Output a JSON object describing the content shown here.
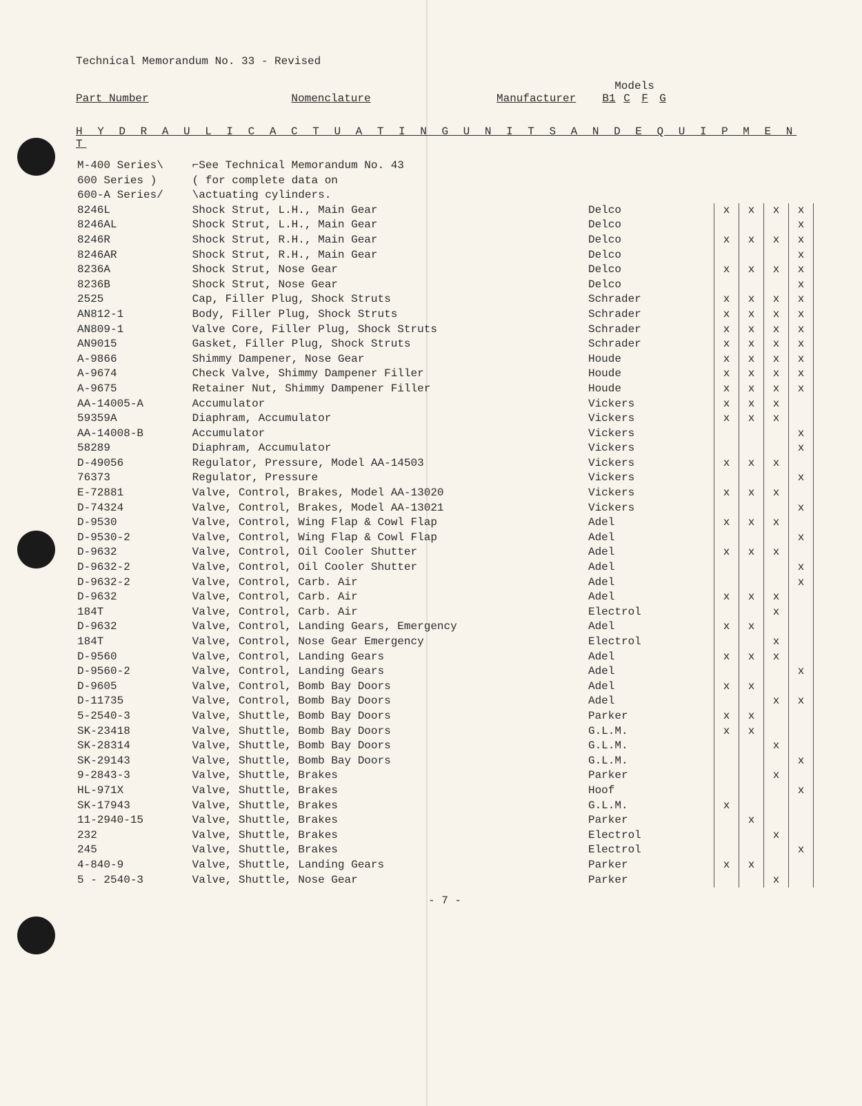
{
  "doc": {
    "title": "Technical Memorandum No. 33 - Revised",
    "headers": {
      "part": "Part Number",
      "nom": "Nomenclature",
      "mfr": "Manufacturer",
      "models": "Models",
      "mcols": [
        "B1",
        "C",
        "F",
        "G"
      ]
    },
    "section": "H Y D R A U L I C   A C T U A T I N G   U N I T S   A N D   E Q U I P M E N T",
    "note_rows": [
      {
        "part": "M-400 Series\\",
        "nom": "⌐See Technical Memorandum No. 43"
      },
      {
        "part": "600 Series  )",
        "nom": "( for complete data on"
      },
      {
        "part": "600-A Series/",
        "nom": "\\actuating cylinders."
      }
    ],
    "rows": [
      {
        "part": "8246L",
        "nom": "Shock Strut, L.H., Main Gear",
        "mfr": "Delco",
        "m": [
          "x",
          "x",
          "x",
          "x"
        ]
      },
      {
        "part": "8246AL",
        "nom": "Shock Strut, L.H., Main Gear",
        "mfr": "Delco",
        "m": [
          "",
          "",
          "",
          "x"
        ]
      },
      {
        "part": "8246R",
        "nom": "Shock Strut, R.H., Main Gear",
        "mfr": "Delco",
        "m": [
          "x",
          "x",
          "x",
          "x"
        ]
      },
      {
        "part": "8246AR",
        "nom": "Shock Strut, R.H., Main Gear",
        "mfr": "Delco",
        "m": [
          "",
          "",
          "",
          "x"
        ]
      },
      {
        "part": "8236A",
        "nom": "Shock Strut, Nose Gear",
        "mfr": "Delco",
        "m": [
          "x",
          "x",
          "x",
          "x"
        ]
      },
      {
        "part": "8236B",
        "nom": "Shock Strut, Nose Gear",
        "mfr": "Delco",
        "m": [
          "",
          "",
          "",
          "x"
        ]
      },
      {
        "part": "2525",
        "nom": "Cap, Filler Plug, Shock Struts",
        "mfr": "Schrader",
        "m": [
          "x",
          "x",
          "x",
          "x"
        ]
      },
      {
        "part": "AN812-1",
        "nom": "Body, Filler Plug, Shock Struts",
        "mfr": "Schrader",
        "m": [
          "x",
          "x",
          "x",
          "x"
        ]
      },
      {
        "part": "AN809-1",
        "nom": "Valve Core, Filler Plug, Shock Struts",
        "mfr": "Schrader",
        "m": [
          "x",
          "x",
          "x",
          "x"
        ]
      },
      {
        "part": "AN9015",
        "nom": "Gasket, Filler Plug, Shock Struts",
        "mfr": "Schrader",
        "m": [
          "x",
          "x",
          "x",
          "x"
        ]
      },
      {
        "part": "A-9866",
        "nom": "Shimmy Dampener, Nose Gear",
        "mfr": "Houde",
        "m": [
          "x",
          "x",
          "x",
          "x"
        ]
      },
      {
        "part": "A-9674",
        "nom": "Check Valve, Shimmy Dampener Filler",
        "mfr": "Houde",
        "m": [
          "x",
          "x",
          "x",
          "x"
        ]
      },
      {
        "part": "A-9675",
        "nom": "Retainer Nut, Shimmy Dampener Filler",
        "mfr": "Houde",
        "m": [
          "x",
          "x",
          "x",
          "x"
        ]
      },
      {
        "part": "AA-14005-A",
        "nom": "Accumulator",
        "mfr": "Vickers",
        "m": [
          "x",
          "x",
          "x",
          ""
        ]
      },
      {
        "part": "59359A",
        "nom": "Diaphram, Accumulator",
        "mfr": "Vickers",
        "m": [
          "x",
          "x",
          "x",
          ""
        ]
      },
      {
        "part": "AA-14008-B",
        "nom": "Accumulator",
        "mfr": "Vickers",
        "m": [
          "",
          "",
          "",
          "x"
        ]
      },
      {
        "part": "58289",
        "nom": "Diaphram, Accumulator",
        "mfr": "Vickers",
        "m": [
          "",
          "",
          "",
          "x"
        ]
      },
      {
        "part": "D-49056",
        "nom": "Regulator, Pressure, Model AA-14503",
        "mfr": "Vickers",
        "m": [
          "x",
          "x",
          "x",
          ""
        ]
      },
      {
        "part": "76373",
        "nom": "Regulator, Pressure",
        "mfr": "Vickers",
        "m": [
          "",
          "",
          "",
          "x"
        ]
      },
      {
        "part": "E-72881",
        "nom": "Valve, Control, Brakes, Model AA-13020",
        "mfr": "Vickers",
        "m": [
          "x",
          "x",
          "x",
          ""
        ]
      },
      {
        "part": "D-74324",
        "nom": "Valve, Control, Brakes, Model AA-13021",
        "mfr": "Vickers",
        "m": [
          "",
          "",
          "",
          "x"
        ]
      },
      {
        "part": "D-9530",
        "nom": "Valve, Control, Wing Flap & Cowl Flap",
        "mfr": "Adel",
        "m": [
          "x",
          "x",
          "x",
          ""
        ]
      },
      {
        "part": "D-9530-2",
        "nom": "Valve, Control, Wing Flap & Cowl Flap",
        "mfr": "Adel",
        "m": [
          "",
          "",
          "",
          "x"
        ]
      },
      {
        "part": "D-9632",
        "nom": "Valve, Control, Oil Cooler Shutter",
        "mfr": "Adel",
        "m": [
          "x",
          "x",
          "x",
          ""
        ]
      },
      {
        "part": "D-9632-2",
        "nom": "Valve, Control, Oil Cooler Shutter",
        "mfr": "Adel",
        "m": [
          "",
          "",
          "",
          "x"
        ]
      },
      {
        "part": "D-9632-2",
        "nom": "Valve, Control, Carb. Air",
        "mfr": "Adel",
        "m": [
          "",
          "",
          "",
          "x"
        ]
      },
      {
        "part": "D-9632",
        "nom": "Valve, Control, Carb. Air",
        "mfr": "Adel",
        "m": [
          "x",
          "x",
          "x",
          ""
        ]
      },
      {
        "part": "184T",
        "nom": "Valve, Control, Carb. Air",
        "mfr": "Electrol",
        "m": [
          "",
          "",
          "x",
          ""
        ]
      },
      {
        "part": "D-9632",
        "nom": "Valve, Control, Landing Gears, Emergency",
        "mfr": "Adel",
        "m": [
          "x",
          "x",
          "",
          ""
        ]
      },
      {
        "part": "184T",
        "nom": "Valve, Control, Nose Gear Emergency",
        "mfr": "Electrol",
        "m": [
          "",
          "",
          "x",
          ""
        ]
      },
      {
        "part": "D-9560",
        "nom": "Valve, Control, Landing Gears",
        "mfr": "Adel",
        "m": [
          "x",
          "x",
          "x",
          ""
        ]
      },
      {
        "part": "D-9560-2",
        "nom": "Valve, Control, Landing Gears",
        "mfr": "Adel",
        "m": [
          "",
          "",
          "",
          "x"
        ]
      },
      {
        "part": "D-9605",
        "nom": "Valve, Control, Bomb Bay Doors",
        "mfr": "Adel",
        "m": [
          "x",
          "x",
          "",
          ""
        ]
      },
      {
        "part": "D-11735",
        "nom": "Valve, Control, Bomb Bay Doors",
        "mfr": "Adel",
        "m": [
          "",
          "",
          "x",
          "x"
        ]
      },
      {
        "part": "5-2540-3",
        "nom": "Valve, Shuttle, Bomb Bay Doors",
        "mfr": "Parker",
        "m": [
          "x",
          "x",
          "",
          ""
        ]
      },
      {
        "part": "SK-23418",
        "nom": "Valve, Shuttle, Bomb Bay Doors",
        "mfr": "G.L.M.",
        "m": [
          "x",
          "x",
          "",
          ""
        ]
      },
      {
        "part": "SK-28314",
        "nom": "Valve, Shuttle, Bomb Bay Doors",
        "mfr": "G.L.M.",
        "m": [
          "",
          "",
          "x",
          ""
        ]
      },
      {
        "part": "SK-29143",
        "nom": "Valve, Shuttle, Bomb Bay Doors",
        "mfr": "G.L.M.",
        "m": [
          "",
          "",
          "",
          "x"
        ]
      },
      {
        "part": "9-2843-3",
        "nom": "Valve, Shuttle, Brakes",
        "mfr": "Parker",
        "m": [
          "",
          "",
          "x",
          ""
        ]
      },
      {
        "part": "HL-971X",
        "nom": "Valve, Shuttle, Brakes",
        "mfr": "Hoof",
        "m": [
          "",
          "",
          "",
          "x"
        ]
      },
      {
        "part": "SK-17943",
        "nom": "Valve, Shuttle, Brakes",
        "mfr": "G.L.M.",
        "m": [
          "x",
          "",
          "",
          ""
        ]
      },
      {
        "part": "11-2940-15",
        "nom": "Valve, Shuttle, Brakes",
        "mfr": "Parker",
        "m": [
          "",
          "x",
          "",
          ""
        ]
      },
      {
        "part": "232",
        "nom": "Valve, Shuttle, Brakes",
        "mfr": "Electrol",
        "m": [
          "",
          "",
          "x",
          ""
        ]
      },
      {
        "part": "245",
        "nom": "Valve, Shuttle, Brakes",
        "mfr": "Electrol",
        "m": [
          "",
          "",
          "",
          "x"
        ]
      },
      {
        "part": "4-840-9",
        "nom": "Valve, Shuttle, Landing Gears",
        "mfr": "Parker",
        "m": [
          "x",
          "x",
          "",
          ""
        ]
      },
      {
        "part": "5 - 2540-3",
        "nom": "Valve, Shuttle, Nose Gear",
        "mfr": "Parker",
        "m": [
          "",
          "",
          "x",
          ""
        ]
      }
    ],
    "page_number": "- 7 -"
  },
  "style": {
    "page_bg": "#f8f4ec",
    "text_color": "#2a2a2a",
    "hole_color": "#1a1a1a",
    "font": "Courier New"
  }
}
